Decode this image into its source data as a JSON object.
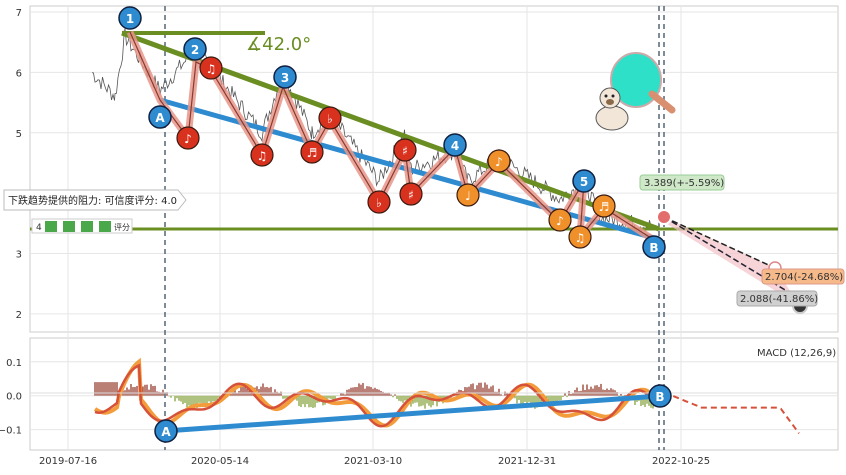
{
  "chart_data": [
    {
      "type": "line",
      "panel": "price",
      "title": "",
      "ylim": [
        1.7,
        7.1
      ],
      "yticks": [
        2,
        3,
        4,
        5,
        6,
        7
      ],
      "xlabels": [
        "2019-07-16",
        "2020-05-14",
        "2021-03-10",
        "2021-12-31",
        "2022-10-25"
      ],
      "angle_label": "∡42.0°",
      "resistance_label": "下跌趋势提供的阻力: 可信度评分: 4.0",
      "rating_prefix": "4",
      "rating_suffix": "评分",
      "wave_markers": [
        "1",
        "2",
        "3",
        "4",
        "5",
        "A",
        "B"
      ],
      "music_markers": [
        "♪",
        "♫",
        "♬",
        "♭",
        "♯",
        "♩"
      ],
      "projections": [
        {
          "label": "3.389(+-5.59%)",
          "value": 3.389,
          "color": "#cfe8c8"
        },
        {
          "label": "2.704(-24.68%)",
          "value": 2.704,
          "color": "#f6b98a"
        },
        {
          "label": "2.088(-41.86%)",
          "value": 2.088,
          "color": "#d0d0d0"
        }
      ],
      "colors": {
        "trend": "#6b8e23",
        "support": "#2e8bd0",
        "wave": "#e8968a",
        "price": "#555555"
      }
    },
    {
      "type": "line",
      "panel": "macd",
      "title": "MACD (12,26,9)",
      "ylim": [
        -0.16,
        0.17
      ],
      "yticks": [
        -0.1,
        0.0,
        0.1
      ],
      "ytick_labels": [
        "−0.1",
        "0.0",
        "0.1"
      ],
      "markers": [
        "A",
        "B"
      ],
      "colors": {
        "macd": "#d6513a",
        "signal": "#f39c3c",
        "trend": "#2e8bd0"
      }
    }
  ]
}
